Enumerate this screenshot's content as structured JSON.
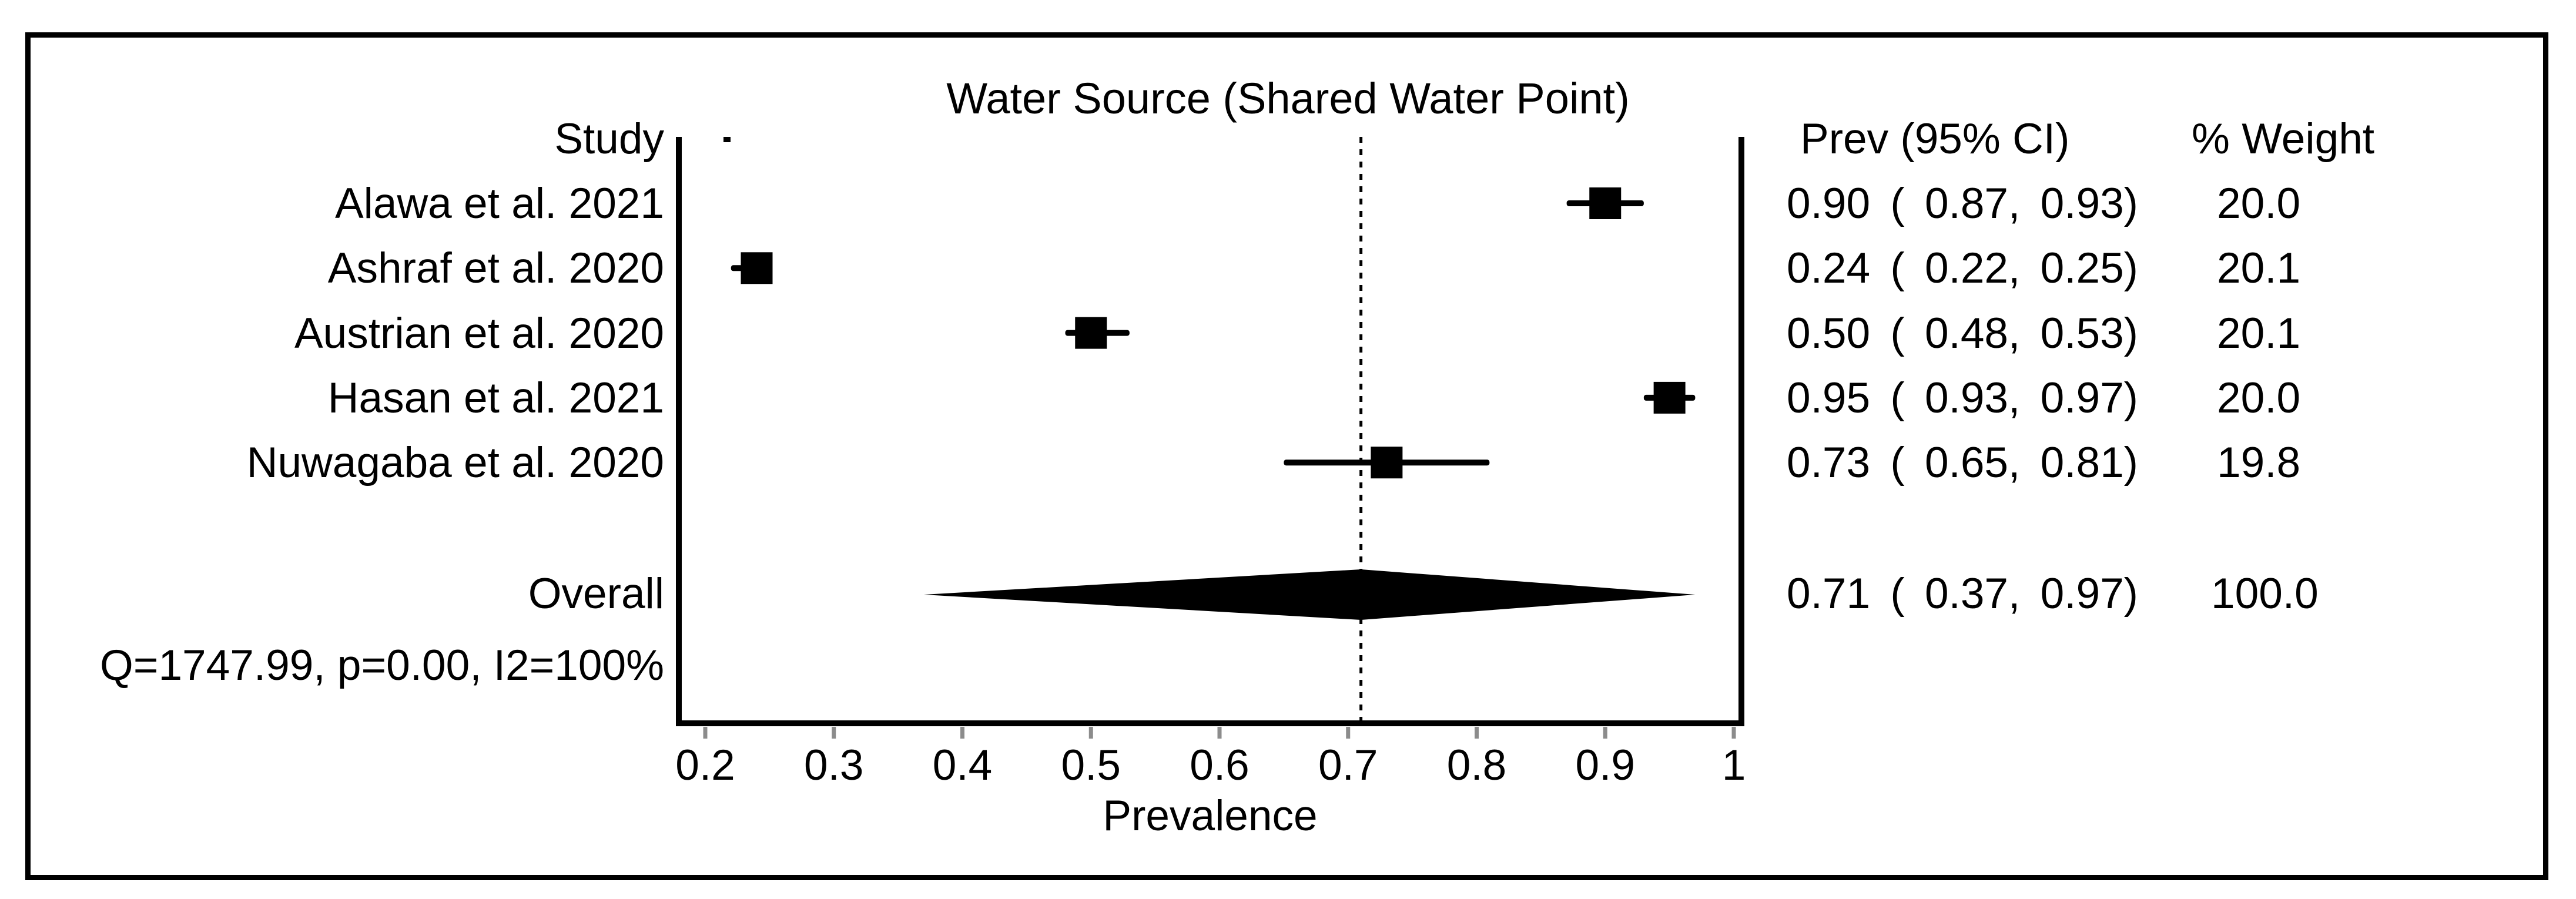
{
  "figure": {
    "title": "Water Source (Shared Water Point)",
    "col_study": "Study",
    "col_prev": "Prev (95% CI)",
    "col_weight": "% Weight",
    "xlabel": "Prevalence",
    "overall_label": "Overall",
    "heterogeneity": "Q=1747.99, p=0.00, I2=100%"
  },
  "chart_data": {
    "type": "forest",
    "title": "Water Source (Shared Water Point)",
    "xlabel": "Prevalence",
    "xlim": [
      0.2,
      1.0
    ],
    "x_ticks": [
      0.2,
      0.3,
      0.4,
      0.5,
      0.6,
      0.7,
      0.8,
      0.9,
      1
    ],
    "x_tick_labels": [
      "0.2",
      "0.3",
      "0.4",
      "0.5",
      "0.6",
      "0.7",
      "0.8",
      "0.9",
      "1"
    ],
    "grid": false,
    "dashed_reference": 0.71,
    "studies": [
      {
        "label": "Alawa et al. 2021",
        "prev": 0.9,
        "ci_low": 0.87,
        "ci_high": 0.93,
        "prev_text": "0.90 ( 0.87, 0.93)",
        "weight": 20.0,
        "weight_text": "20.0"
      },
      {
        "label": "Ashraf et al. 2020",
        "prev": 0.24,
        "ci_low": 0.22,
        "ci_high": 0.25,
        "prev_text": "0.24 ( 0.22, 0.25)",
        "weight": 20.1,
        "weight_text": "20.1"
      },
      {
        "label": "Austrian et al. 2020",
        "prev": 0.5,
        "ci_low": 0.48,
        "ci_high": 0.53,
        "prev_text": "0.50 ( 0.48, 0.53)",
        "weight": 20.1,
        "weight_text": "20.1"
      },
      {
        "label": "Hasan et al. 2021",
        "prev": 0.95,
        "ci_low": 0.93,
        "ci_high": 0.97,
        "prev_text": "0.95 ( 0.93, 0.97)",
        "weight": 20.0,
        "weight_text": "20.0"
      },
      {
        "label": "Nuwagaba et al. 2020",
        "prev": 0.73,
        "ci_low": 0.65,
        "ci_high": 0.81,
        "prev_text": "0.73 ( 0.65, 0.81)",
        "weight": 19.8,
        "weight_text": "19.8"
      }
    ],
    "overall": {
      "label": "Overall",
      "prev": 0.71,
      "ci_low": 0.37,
      "ci_high": 0.97,
      "prev_text": "0.71 ( 0.37, 0.97)",
      "weight": 100.0,
      "weight_text": "100.0"
    },
    "heterogeneity": "Q=1747.99, p=0.00, I2=100%",
    "colors": {
      "marker": "#000000",
      "axis": "#000000",
      "tick": "#8c8c8c",
      "text": "#000000",
      "background": "#ffffff"
    }
  }
}
